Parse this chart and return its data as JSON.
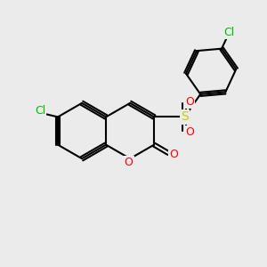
{
  "bg_color": "#ebebeb",
  "bond_color": "#000000",
  "bond_width": 1.5,
  "atom_colors": {
    "Cl": "#00bb00",
    "O": "#ff0000",
    "S": "#cccc00"
  },
  "font_size_atom": 9,
  "font_size_cl": 9
}
